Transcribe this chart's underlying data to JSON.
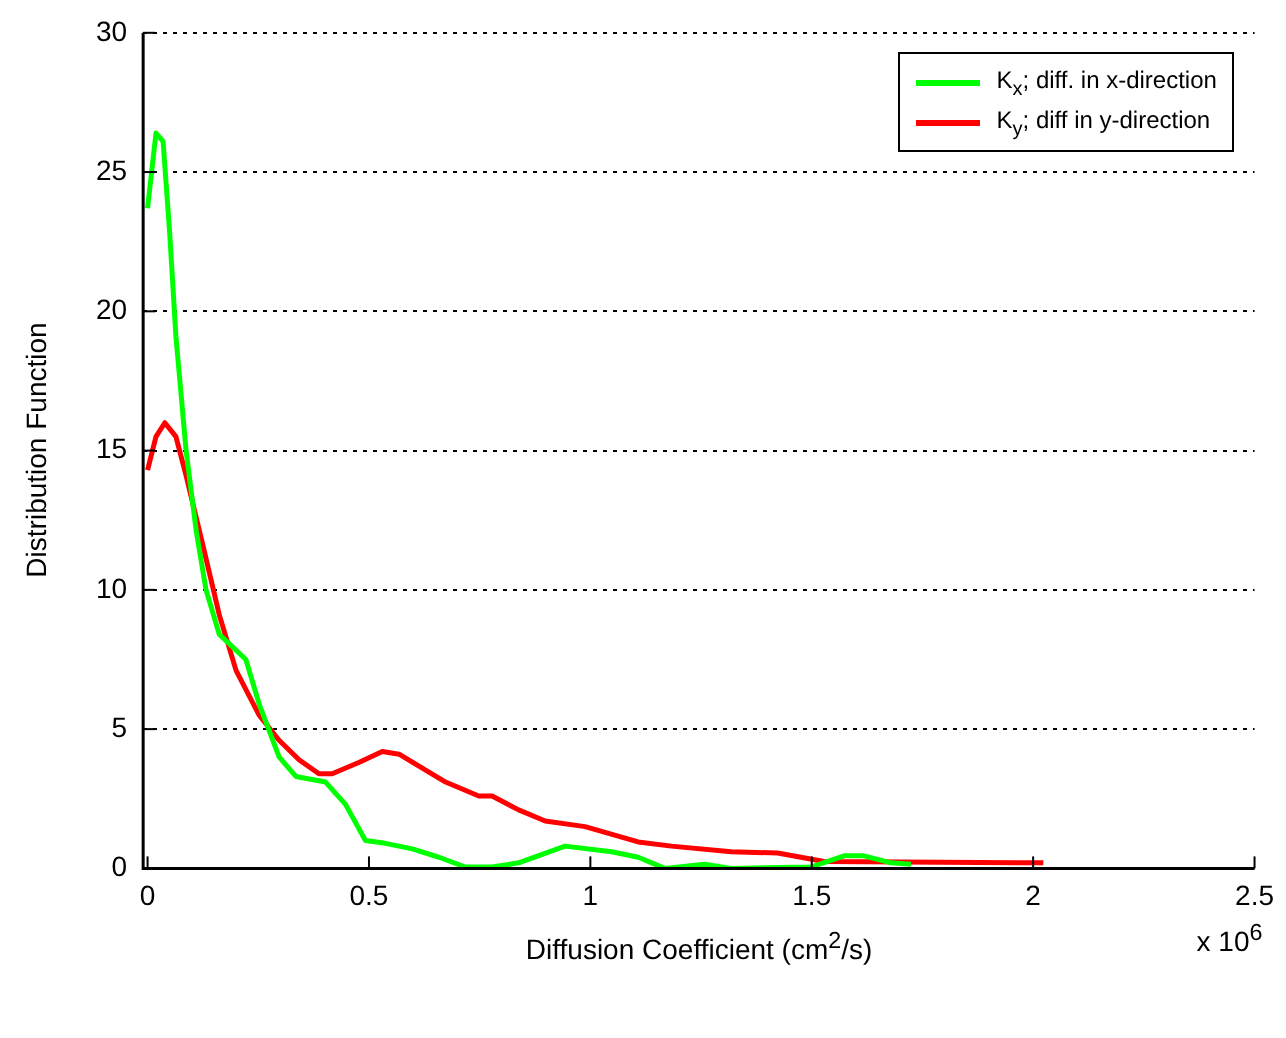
{
  "chart_data": {
    "type": "line",
    "xlabel": "Diffusion Coefficient (cm$^{2}$/s)",
    "ylabel": "Distribution Function",
    "annotations": [
      "x 10$^{6}$"
    ],
    "xlim": [
      -0.01,
      2.5
    ],
    "xticks": [
      0,
      0.5,
      1,
      1.5,
      2,
      2.5
    ],
    "ylim": [
      0,
      30
    ],
    "yticks": [
      0,
      5,
      10,
      15,
      20,
      25,
      30
    ],
    "grid": "y",
    "legend": "top right",
    "marker": "none",
    "line_style": "solid",
    "series": [
      {
        "name": "K$_{x}$; diff. in x-direction",
        "color": "#00ff00",
        "x": [
          0,
          0.019,
          0.035,
          0.05,
          0.064,
          0.087,
          0.11,
          0.132,
          0.162,
          0.222,
          0.252,
          0.297,
          0.335,
          0.402,
          0.447,
          0.492,
          0.537,
          0.598,
          0.658,
          0.718,
          0.778,
          0.838,
          0.943,
          1.048,
          1.108,
          1.168,
          1.258,
          1.318,
          1.498,
          1.573,
          1.618,
          1.679,
          1.724
        ],
        "values": [
          23.7,
          26.4,
          26.1,
          22.8,
          19.1,
          15.0,
          12.1,
          10.0,
          8.4,
          7.5,
          5.9,
          4.0,
          3.3,
          3.1,
          2.3,
          1.0,
          0.9,
          0.7,
          0.4,
          0.05,
          0.05,
          0.2,
          0.8,
          0.6,
          0.4,
          0,
          0.15,
          0,
          0.05,
          0.45,
          0.45,
          0.2,
          0.15
        ]
      },
      {
        "name": "K$_{y}$; diff in y-direction",
        "color": "#ff0000",
        "x": [
          0,
          0.019,
          0.039,
          0.064,
          0.087,
          0.125,
          0.162,
          0.2,
          0.252,
          0.297,
          0.342,
          0.387,
          0.417,
          0.477,
          0.53,
          0.568,
          0.673,
          0.748,
          0.778,
          0.838,
          0.898,
          0.988,
          1.108,
          1.183,
          1.318,
          1.423,
          1.528,
          2.023
        ],
        "values": [
          14.3,
          15.5,
          16.0,
          15.5,
          14.1,
          11.6,
          9.1,
          7.1,
          5.5,
          4.6,
          3.9,
          3.4,
          3.4,
          3.8,
          4.2,
          4.1,
          3.1,
          2.6,
          2.6,
          2.1,
          1.7,
          1.5,
          0.95,
          0.8,
          0.6,
          0.55,
          0.25,
          0.2
        ]
      }
    ]
  }
}
